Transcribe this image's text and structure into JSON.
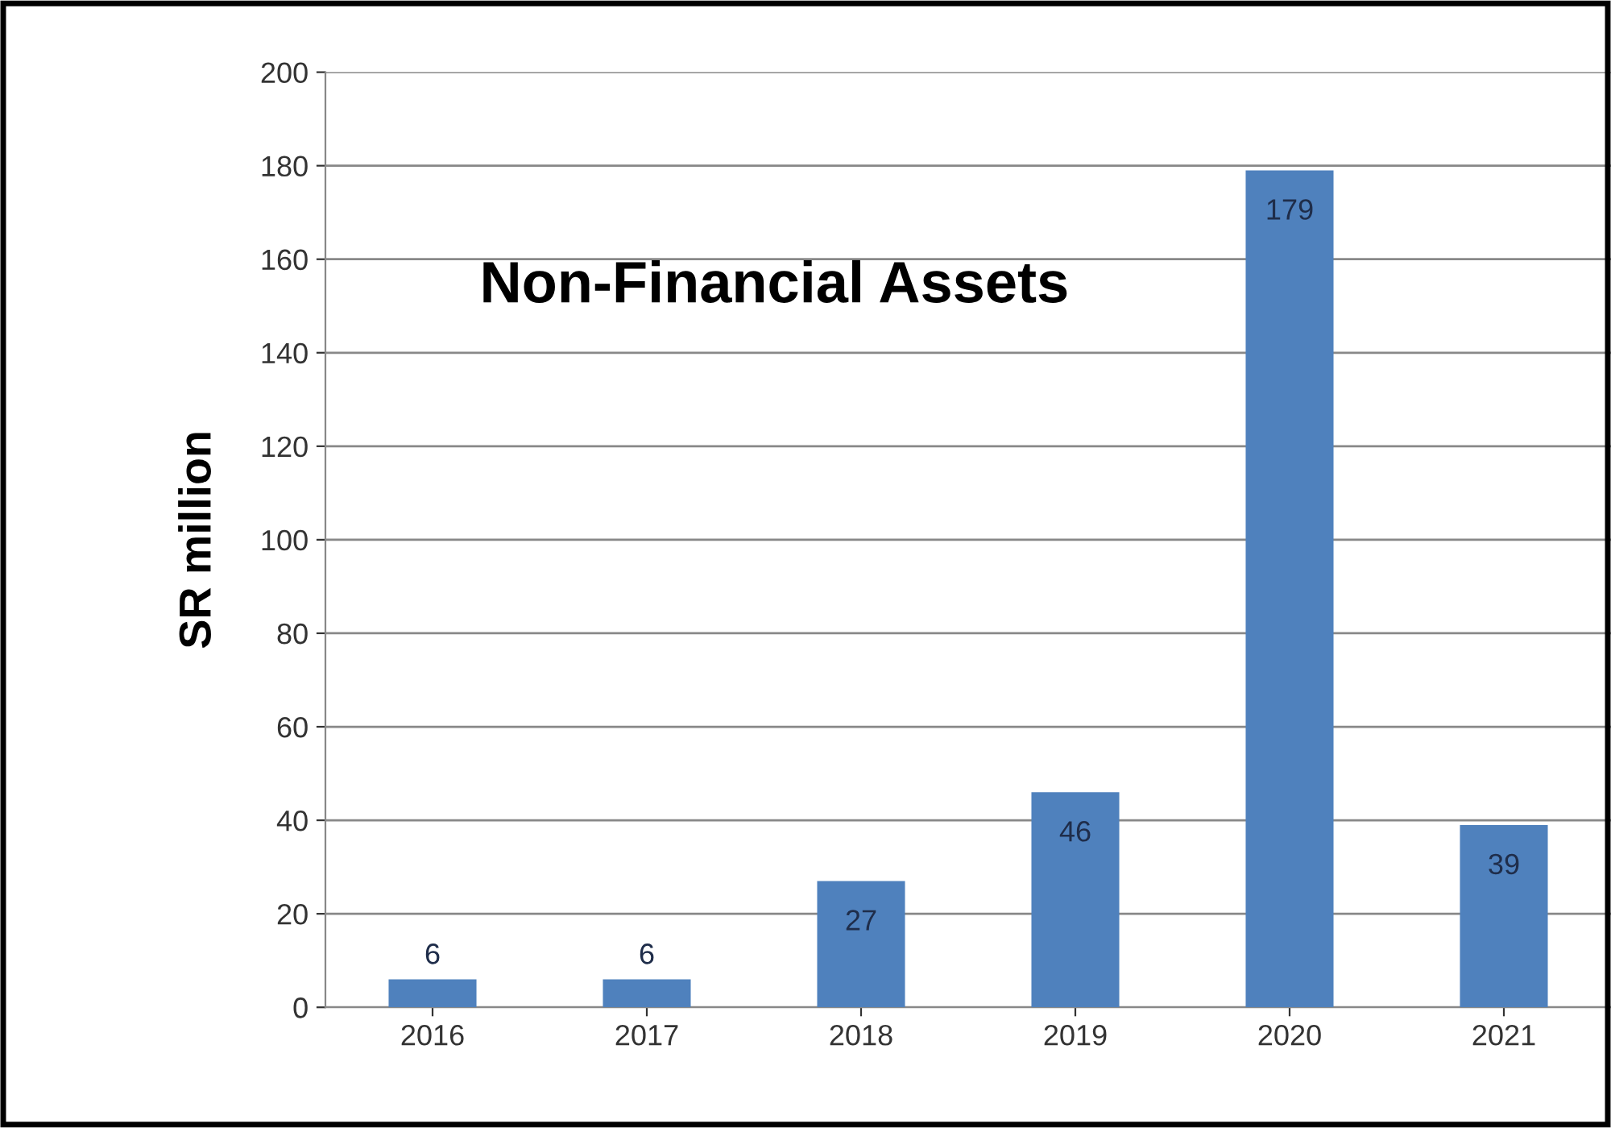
{
  "chart_data": {
    "type": "bar",
    "title": "Non-Financial Assets",
    "ylabel": "SR million",
    "categories": [
      "2016",
      "2017",
      "2018",
      "2019",
      "2020",
      "2021"
    ],
    "values": [
      6,
      6,
      27,
      46,
      179,
      39
    ],
    "color": "#4f81bd",
    "ylim": [
      0,
      200
    ],
    "yticks": [
      0,
      20,
      40,
      60,
      80,
      100,
      120,
      140,
      160,
      180,
      200
    ],
    "grid": "y",
    "data_labels": true
  }
}
